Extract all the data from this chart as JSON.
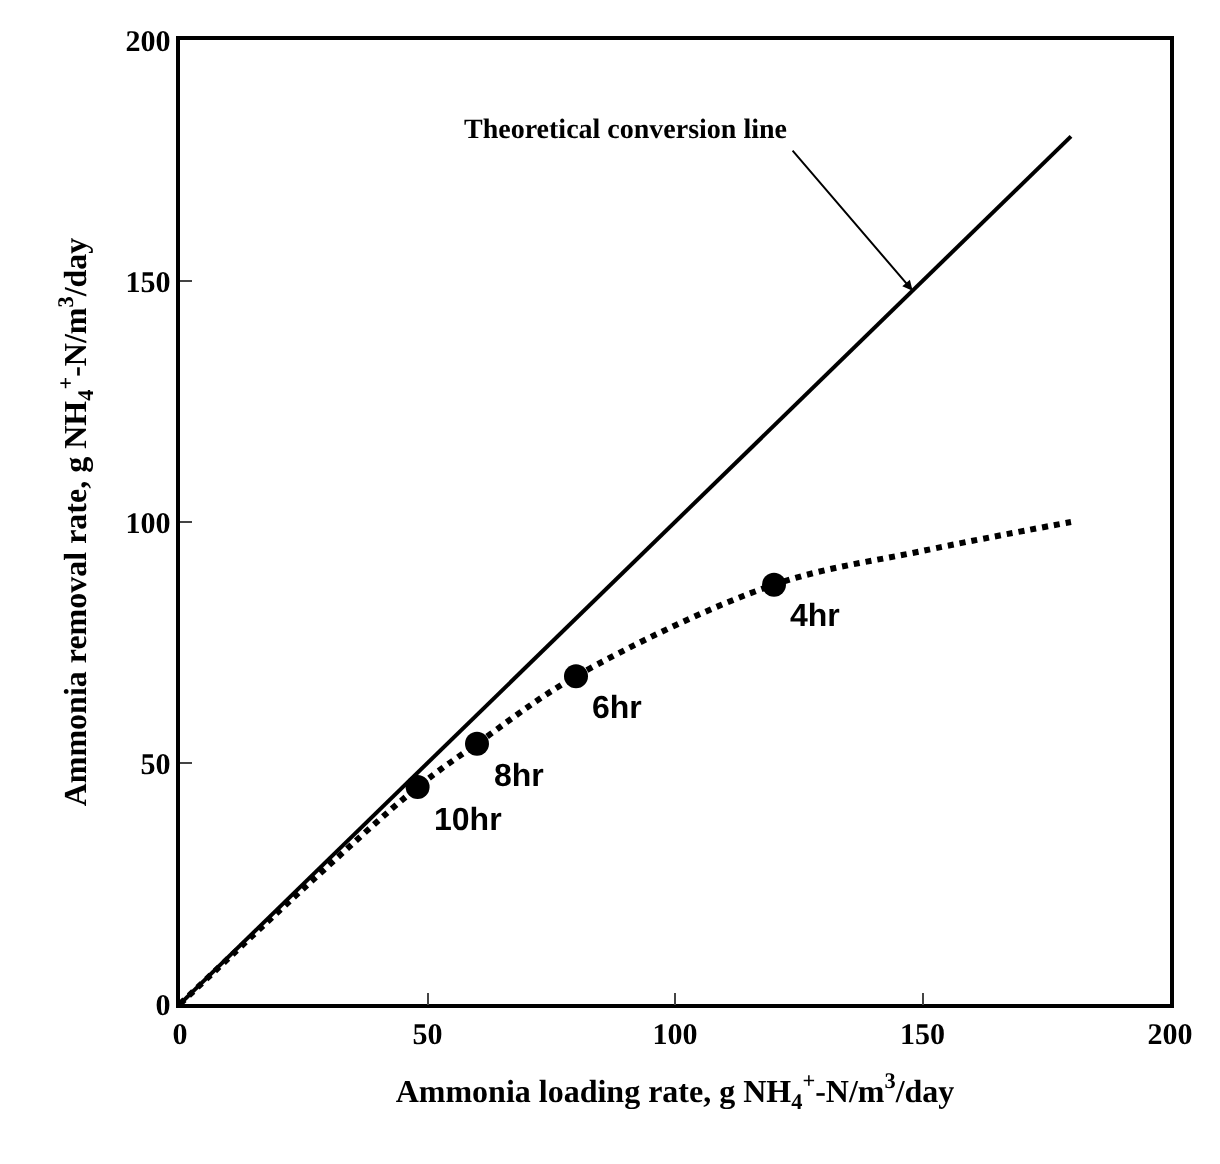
{
  "chart_data": {
    "type": "scatter",
    "xlabel": "Ammonia loading rate, g NH$_{4}$$^{+}$-N/m$^{3}$/day",
    "ylabel": "Ammonia removal rate, g NH$_{4}$$^{+}$-N/m$^{3}$/day",
    "xlim": [
      0,
      200
    ],
    "ylim": [
      0,
      200
    ],
    "xticks": [
      0,
      50,
      100,
      150,
      200
    ],
    "yticks": [
      0,
      50,
      100,
      150,
      200
    ],
    "series": [
      {
        "x": [
          48,
          60,
          80,
          120
        ],
        "values": [
          45,
          54,
          68,
          87
        ],
        "color": "#000000",
        "marker": "circle"
      },
      {
        "type": "line",
        "x": [
          0,
          180
        ],
        "values": [
          0,
          180
        ],
        "color": "#000000",
        "line_style": "solid",
        "marker": "none"
      },
      {
        "type": "line",
        "x": [
          0,
          25,
          48,
          60,
          80,
          120,
          150,
          180
        ],
        "values": [
          0,
          24,
          45,
          54,
          68,
          87,
          94,
          100
        ],
        "color": "#000000",
        "line_style": "dotted",
        "marker": "none"
      }
    ],
    "annotations": [
      {
        "text": "Theoretical conversion line",
        "x": 148,
        "y": 148
      },
      {
        "text": "10hr",
        "x": 48,
        "y": 45
      },
      {
        "text": "8hr",
        "x": 60,
        "y": 54
      },
      {
        "text": "6hr",
        "x": 80,
        "y": 68
      },
      {
        "text": "4hr",
        "x": 120,
        "y": 87
      }
    ]
  }
}
